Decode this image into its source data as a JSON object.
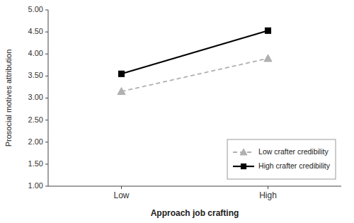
{
  "chart_data": {
    "type": "line",
    "x_label": "Approach job crafting",
    "y_label": "Prosocial motives attribution",
    "categories": [
      "Low",
      "High"
    ],
    "series": [
      {
        "name": "Low crafter credibility",
        "color": "#b0b0b0",
        "marker": "triangle",
        "line_style": "dashed",
        "values": [
          3.15,
          3.9
        ]
      },
      {
        "name": "High crafter credibility",
        "color": "#000000",
        "marker": "square",
        "line_style": "solid",
        "values": [
          3.55,
          4.53
        ]
      }
    ],
    "ylim": [
      1.0,
      5.0
    ],
    "yticks": [
      {
        "value": 1.0,
        "label": "1.00"
      },
      {
        "value": 1.5,
        "label": "1.50"
      },
      {
        "value": 2.0,
        "label": "2.00"
      },
      {
        "value": 2.5,
        "label": "2.50"
      },
      {
        "value": 3.0,
        "label": "3.00"
      },
      {
        "value": 3.5,
        "label": "3.50"
      },
      {
        "value": 4.0,
        "label": "4.00"
      },
      {
        "value": 4.5,
        "label": "4.50"
      },
      {
        "value": 5.0,
        "label": "5.00"
      }
    ],
    "grid": false,
    "legend": "lower right"
  }
}
